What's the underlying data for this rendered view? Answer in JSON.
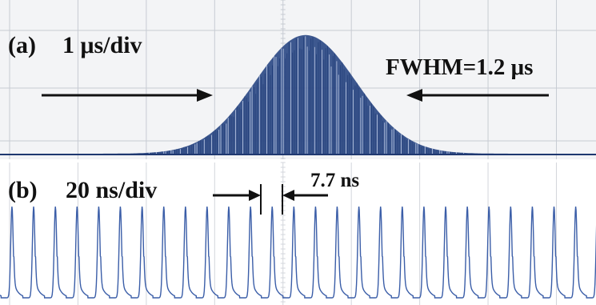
{
  "chart_data": [
    {
      "type": "area",
      "panel_label": "(a)",
      "timebase": "1 μs/div",
      "annotation": "FWHM=1.2 μs",
      "envelope": {
        "shape": "gaussian",
        "fwhm_us": 1.2,
        "center_div": 4.8,
        "peak_fraction": 0.95
      },
      "divisions_x": 9,
      "grid": true,
      "color": "#2e4a86"
    },
    {
      "type": "line",
      "panel_label": "(b)",
      "timebase": "20 ns/div",
      "annotation": "7.7 ns",
      "pulse_period_ns": 7.7,
      "divisions_x": 9,
      "grid": true,
      "color": "#3b5ea8"
    }
  ]
}
